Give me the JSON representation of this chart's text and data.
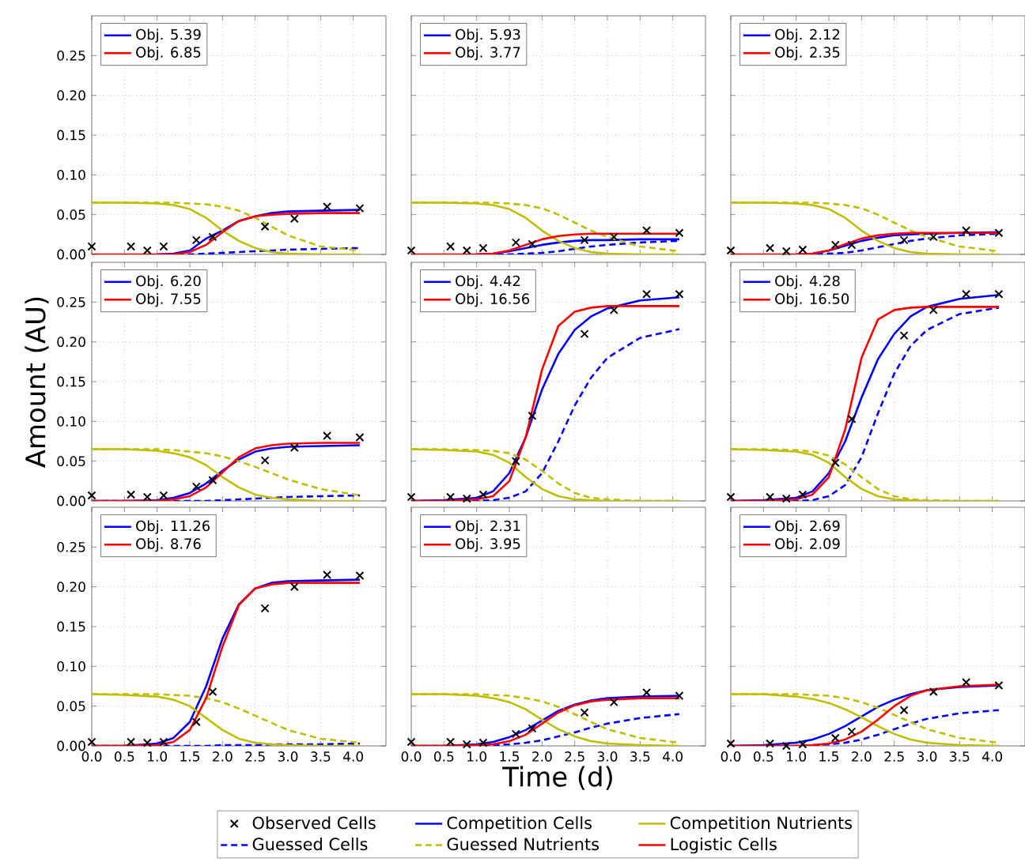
{
  "chart_data": [
    {
      "type": "line",
      "x": [
        0,
        0.5,
        1,
        1.25,
        1.5,
        1.75,
        2,
        2.25,
        2.5,
        2.75,
        3,
        3.5,
        4.1
      ],
      "xlim": [
        0,
        4.5
      ],
      "xticks": [
        0,
        0.5,
        1,
        1.5,
        2,
        2.5,
        3,
        3.5,
        4
      ],
      "ylim": [
        0,
        0.3
      ],
      "yticks": [
        {
          "value": 0,
          "label": "0.00"
        },
        {
          "value": 0.05,
          "label": "0.05"
        },
        {
          "value": 0.1,
          "label": "0.10"
        },
        {
          "value": 0.15,
          "label": "0.15"
        },
        {
          "value": 0.2,
          "label": "0.20"
        },
        {
          "value": 0.25,
          "label": "0.25"
        }
      ],
      "grid": true,
      "legend": "top left",
      "tick_labels": "y",
      "series": [
        {
          "type": "scatter",
          "marker": "cross",
          "color": "#000000",
          "x": [
            0,
            0.6,
            0.85,
            1.1,
            1.6,
            1.85,
            2.65,
            3.1,
            3.6,
            4.1
          ],
          "values": [
            0.01,
            0.01,
            0.005,
            0.01,
            0.018,
            0.022,
            0.035,
            0.045,
            0.06,
            0.058
          ]
        },
        {
          "name": "Obj. 5.39",
          "color": "#0000ff",
          "line_style": "solid",
          "values": [
            null,
            null,
            0,
            0.001,
            0.005,
            0.02,
            0.03,
            0.042,
            0.048,
            0.052,
            0.054,
            0.055,
            0.056
          ]
        },
        {
          "color": "#0000ff",
          "line_style": "dashed",
          "values": [
            null,
            null,
            0,
            0,
            0,
            0.001,
            0.002,
            0.003,
            0.004,
            0.005,
            0.006,
            0.007,
            0.008
          ]
        },
        {
          "color": "#bfbf00",
          "line_style": "solid",
          "values": [
            0.065,
            0.065,
            0.064,
            0.062,
            0.057,
            0.046,
            0.03,
            0.017,
            0.008,
            0.003,
            0.001,
            0,
            0
          ]
        },
        {
          "color": "#bfbf00",
          "line_style": "dashed",
          "values": [
            0.065,
            0.065,
            0.065,
            0.065,
            0.064,
            0.063,
            0.06,
            0.055,
            0.046,
            0.035,
            0.024,
            0.01,
            0.005
          ]
        },
        {
          "name": "Obj. 6.85",
          "color": "#ff0000",
          "line_style": "solid",
          "values": [
            0,
            0,
            0,
            0,
            0.003,
            0.012,
            0.028,
            0.042,
            0.048,
            0.05,
            0.051,
            0.052,
            0.052
          ]
        }
      ]
    },
    {
      "type": "line",
      "x": [
        0,
        0.5,
        1,
        1.25,
        1.5,
        1.75,
        2,
        2.25,
        2.5,
        2.75,
        3,
        3.5,
        4.1
      ],
      "xlim": [
        0,
        4.5
      ],
      "xticks": [
        0,
        0.5,
        1,
        1.5,
        2,
        2.5,
        3,
        3.5,
        4
      ],
      "ylim": [
        0,
        0.3
      ],
      "yticks": [
        0,
        0.05,
        0.1,
        0.15,
        0.2,
        0.25
      ],
      "grid": true,
      "legend": "top left",
      "tick_labels": false,
      "series": [
        {
          "type": "scatter",
          "marker": "cross",
          "color": "#000000",
          "x": [
            0,
            0.6,
            0.85,
            1.1,
            1.6,
            1.85,
            2.65,
            3.1,
            3.6,
            4.1
          ],
          "values": [
            0.005,
            0.01,
            0.005,
            0.008,
            0.015,
            0.013,
            0.018,
            0.022,
            0.03,
            0.027
          ]
        },
        {
          "name": "Obj. 5.93",
          "color": "#0000ff",
          "line_style": "solid",
          "values": [
            null,
            null,
            0,
            0.001,
            0.004,
            0.008,
            0.012,
            0.015,
            0.017,
            0.018,
            0.018,
            0.019,
            0.019
          ]
        },
        {
          "color": "#0000ff",
          "line_style": "dashed",
          "values": [
            null,
            null,
            0,
            0,
            0,
            0.001,
            0.002,
            0.004,
            0.007,
            0.01,
            0.012,
            0.015,
            0.017
          ]
        },
        {
          "color": "#bfbf00",
          "line_style": "solid",
          "values": [
            0.065,
            0.065,
            0.064,
            0.062,
            0.057,
            0.046,
            0.03,
            0.017,
            0.008,
            0.003,
            0.001,
            0,
            0
          ]
        },
        {
          "color": "#bfbf00",
          "line_style": "dashed",
          "values": [
            0.065,
            0.065,
            0.065,
            0.065,
            0.064,
            0.062,
            0.058,
            0.05,
            0.04,
            0.03,
            0.022,
            0.01,
            0.004
          ]
        },
        {
          "name": "Obj. 3.77",
          "color": "#ff0000",
          "line_style": "solid",
          "values": [
            0,
            0,
            0,
            0.001,
            0.005,
            0.012,
            0.019,
            0.023,
            0.025,
            0.026,
            0.026,
            0.026,
            0.026
          ]
        }
      ]
    },
    {
      "type": "line",
      "x": [
        0,
        0.5,
        1,
        1.25,
        1.5,
        1.75,
        2,
        2.25,
        2.5,
        2.75,
        3,
        3.5,
        4.1
      ],
      "xlim": [
        0,
        4.5
      ],
      "xticks": [
        0,
        0.5,
        1,
        1.5,
        2,
        2.5,
        3,
        3.5,
        4
      ],
      "ylim": [
        0,
        0.3
      ],
      "yticks": [
        0,
        0.05,
        0.1,
        0.15,
        0.2,
        0.25
      ],
      "grid": true,
      "legend": "top left",
      "tick_labels": false,
      "series": [
        {
          "type": "scatter",
          "marker": "cross",
          "color": "#000000",
          "x": [
            0,
            0.6,
            0.85,
            1.1,
            1.6,
            1.85,
            2.65,
            3.1,
            3.6,
            4.1
          ],
          "values": [
            0.005,
            0.008,
            0.004,
            0.006,
            0.012,
            0.012,
            0.018,
            0.022,
            0.03,
            0.027
          ]
        },
        {
          "name": "Obj. 2.12",
          "color": "#0000ff",
          "line_style": "solid",
          "values": [
            null,
            null,
            0,
            0.001,
            0.005,
            0.011,
            0.017,
            0.021,
            0.024,
            0.025,
            0.026,
            0.027,
            0.028
          ]
        },
        {
          "color": "#0000ff",
          "line_style": "dashed",
          "values": [
            null,
            null,
            0,
            0,
            0.001,
            0.002,
            0.005,
            0.009,
            0.013,
            0.017,
            0.02,
            0.024,
            0.026
          ]
        },
        {
          "color": "#bfbf00",
          "line_style": "solid",
          "values": [
            0.065,
            0.065,
            0.064,
            0.062,
            0.057,
            0.046,
            0.03,
            0.017,
            0.008,
            0.003,
            0.001,
            0,
            0
          ]
        },
        {
          "color": "#bfbf00",
          "line_style": "dashed",
          "values": [
            0.065,
            0.065,
            0.065,
            0.065,
            0.064,
            0.062,
            0.058,
            0.05,
            0.04,
            0.03,
            0.022,
            0.01,
            0.004
          ]
        },
        {
          "name": "Obj. 2.35",
          "color": "#ff0000",
          "line_style": "solid",
          "values": [
            0,
            0,
            0,
            0.001,
            0.005,
            0.013,
            0.02,
            0.024,
            0.026,
            0.027,
            0.027,
            0.027,
            0.027
          ]
        }
      ]
    },
    {
      "type": "line",
      "x": [
        0,
        0.5,
        1,
        1.25,
        1.5,
        1.75,
        2,
        2.25,
        2.5,
        2.75,
        3,
        3.5,
        4.1
      ],
      "ylabel": "Amount (AU)",
      "xlim": [
        0,
        4.5
      ],
      "xticks": [
        0,
        0.5,
        1,
        1.5,
        2,
        2.5,
        3,
        3.5,
        4
      ],
      "ylim": [
        0,
        0.3
      ],
      "yticks": [
        {
          "value": 0,
          "label": "0.00"
        },
        {
          "value": 0.05,
          "label": "0.05"
        },
        {
          "value": 0.1,
          "label": "0.10"
        },
        {
          "value": 0.15,
          "label": "0.15"
        },
        {
          "value": 0.2,
          "label": "0.20"
        },
        {
          "value": 0.25,
          "label": "0.25"
        }
      ],
      "grid": true,
      "legend": "top left",
      "tick_labels": "y",
      "series": [
        {
          "type": "scatter",
          "marker": "cross",
          "color": "#000000",
          "x": [
            0,
            0.6,
            0.85,
            1.1,
            1.6,
            1.85,
            2.65,
            3.1,
            3.6,
            4.1
          ],
          "values": [
            0.007,
            0.008,
            0.005,
            0.007,
            0.018,
            0.026,
            0.051,
            0.067,
            0.082,
            0.08
          ]
        },
        {
          "name": "Obj. 6.20",
          "color": "#0000ff",
          "line_style": "solid",
          "values": [
            0,
            0,
            0.001,
            0.004,
            0.01,
            0.022,
            0.038,
            0.052,
            0.062,
            0.066,
            0.068,
            0.069,
            0.07
          ]
        },
        {
          "color": "#0000ff",
          "line_style": "dashed",
          "values": [
            0,
            0,
            0,
            0,
            0,
            0,
            0.001,
            0.002,
            0.003,
            0.004,
            0.005,
            0.006,
            0.007
          ]
        },
        {
          "color": "#bfbf00",
          "line_style": "solid",
          "values": [
            0.065,
            0.065,
            0.063,
            0.06,
            0.055,
            0.045,
            0.03,
            0.017,
            0.008,
            0.004,
            0.002,
            0,
            0
          ]
        },
        {
          "color": "#bfbf00",
          "line_style": "dashed",
          "values": [
            0.065,
            0.065,
            0.065,
            0.064,
            0.062,
            0.06,
            0.056,
            0.05,
            0.043,
            0.035,
            0.027,
            0.015,
            0.007
          ]
        },
        {
          "name": "Obj. 7.55",
          "color": "#ff0000",
          "line_style": "solid",
          "values": [
            0,
            0,
            0,
            0.002,
            0.006,
            0.017,
            0.036,
            0.055,
            0.066,
            0.07,
            0.072,
            0.073,
            0.073
          ]
        }
      ]
    },
    {
      "type": "line",
      "x": [
        0,
        0.5,
        1,
        1.25,
        1.5,
        1.75,
        2,
        2.25,
        2.5,
        2.75,
        3,
        3.5,
        4.1
      ],
      "xlim": [
        0,
        4.5
      ],
      "xticks": [
        0,
        0.5,
        1,
        1.5,
        2,
        2.5,
        3,
        3.5,
        4
      ],
      "ylim": [
        0,
        0.3
      ],
      "yticks": [
        0,
        0.05,
        0.1,
        0.15,
        0.2,
        0.25
      ],
      "grid": true,
      "legend": "top left",
      "tick_labels": false,
      "series": [
        {
          "type": "scatter",
          "marker": "cross",
          "color": "#000000",
          "x": [
            0,
            0.6,
            0.85,
            1.1,
            1.6,
            1.85,
            2.65,
            3.1,
            3.6,
            4.1
          ],
          "values": [
            0.005,
            0.005,
            0.003,
            0.008,
            0.05,
            0.107,
            0.21,
            0.24,
            0.26,
            0.26
          ]
        },
        {
          "name": "Obj. 4.42",
          "color": "#0000ff",
          "line_style": "solid",
          "values": [
            0,
            0.001,
            0.004,
            0.012,
            0.035,
            0.08,
            0.14,
            0.185,
            0.215,
            0.232,
            0.242,
            0.252,
            0.256
          ]
        },
        {
          "color": "#0000ff",
          "line_style": "dashed",
          "values": [
            0,
            0,
            0,
            0.001,
            0.004,
            0.012,
            0.035,
            0.075,
            0.12,
            0.155,
            0.18,
            0.205,
            0.216
          ]
        },
        {
          "color": "#bfbf00",
          "line_style": "solid",
          "values": [
            0.065,
            0.064,
            0.062,
            0.058,
            0.048,
            0.03,
            0.015,
            0.006,
            0.002,
            0.001,
            0,
            0,
            0
          ]
        },
        {
          "color": "#bfbf00",
          "line_style": "dashed",
          "values": [
            0.065,
            0.065,
            0.064,
            0.063,
            0.06,
            0.052,
            0.038,
            0.022,
            0.01,
            0.004,
            0.002,
            0,
            0
          ]
        },
        {
          "name": "Obj. 16.56",
          "color": "#ff0000",
          "line_style": "solid",
          "values": [
            0,
            0,
            0.002,
            0.006,
            0.025,
            0.08,
            0.165,
            0.22,
            0.238,
            0.243,
            0.245,
            0.245,
            0.245
          ]
        }
      ]
    },
    {
      "type": "line",
      "x": [
        0,
        0.5,
        1,
        1.25,
        1.5,
        1.75,
        2,
        2.25,
        2.5,
        2.75,
        3,
        3.5,
        4.1
      ],
      "xlim": [
        0,
        4.5
      ],
      "xticks": [
        0,
        0.5,
        1,
        1.5,
        2,
        2.5,
        3,
        3.5,
        4
      ],
      "ylim": [
        0,
        0.3
      ],
      "yticks": [
        0,
        0.05,
        0.1,
        0.15,
        0.2,
        0.25
      ],
      "grid": true,
      "legend": "top left",
      "tick_labels": false,
      "series": [
        {
          "type": "scatter",
          "marker": "cross",
          "color": "#000000",
          "x": [
            0,
            0.6,
            0.85,
            1.1,
            1.6,
            1.85,
            2.65,
            3.1,
            3.6,
            4.1
          ],
          "values": [
            0.005,
            0.005,
            0.003,
            0.008,
            0.048,
            0.103,
            0.208,
            0.24,
            0.26,
            0.26
          ]
        },
        {
          "name": "Obj. 4.28",
          "color": "#0000ff",
          "line_style": "solid",
          "values": [
            0,
            0.001,
            0.004,
            0.012,
            0.035,
            0.075,
            0.13,
            0.178,
            0.21,
            0.232,
            0.244,
            0.254,
            0.259
          ]
        },
        {
          "color": "#0000ff",
          "line_style": "dashed",
          "values": [
            0,
            0,
            0,
            0.001,
            0.006,
            0.02,
            0.055,
            0.11,
            0.16,
            0.195,
            0.215,
            0.235,
            0.243
          ]
        },
        {
          "color": "#bfbf00",
          "line_style": "solid",
          "values": [
            0.065,
            0.064,
            0.062,
            0.058,
            0.048,
            0.03,
            0.015,
            0.006,
            0.002,
            0.001,
            0,
            0,
            0
          ]
        },
        {
          "color": "#bfbf00",
          "line_style": "dashed",
          "values": [
            0.065,
            0.065,
            0.064,
            0.062,
            0.057,
            0.046,
            0.03,
            0.015,
            0.006,
            0.002,
            0.001,
            0,
            0
          ]
        },
        {
          "name": "Obj. 16.50",
          "color": "#ff0000",
          "line_style": "solid",
          "values": [
            0,
            0,
            0.002,
            0.008,
            0.03,
            0.09,
            0.18,
            0.228,
            0.24,
            0.243,
            0.244,
            0.244,
            0.244
          ]
        }
      ]
    },
    {
      "type": "line",
      "x": [
        0,
        0.5,
        1,
        1.25,
        1.5,
        1.75,
        2,
        2.25,
        2.5,
        2.75,
        3,
        3.5,
        4.1
      ],
      "xlim": [
        0,
        4.5
      ],
      "xticks": [
        {
          "value": 0,
          "label": "0.0"
        },
        {
          "value": 0.5,
          "label": "0.5"
        },
        {
          "value": 1,
          "label": "1.0"
        },
        {
          "value": 1.5,
          "label": "1.5"
        },
        {
          "value": 2,
          "label": "2.0"
        },
        {
          "value": 2.5,
          "label": "2.5"
        },
        {
          "value": 3,
          "label": "3.0"
        },
        {
          "value": 3.5,
          "label": "3.5"
        },
        {
          "value": 4,
          "label": "4.0"
        }
      ],
      "ylim": [
        0,
        0.3
      ],
      "yticks": [
        {
          "value": 0,
          "label": "0.00"
        },
        {
          "value": 0.05,
          "label": "0.05"
        },
        {
          "value": 0.1,
          "label": "0.10"
        },
        {
          "value": 0.15,
          "label": "0.15"
        },
        {
          "value": 0.2,
          "label": "0.20"
        },
        {
          "value": 0.25,
          "label": "0.25"
        }
      ],
      "grid": true,
      "legend": "top left",
      "series": [
        {
          "type": "scatter",
          "marker": "cross",
          "color": "#000000",
          "x": [
            0,
            0.6,
            0.85,
            1.1,
            1.6,
            1.85,
            2.65,
            3.1,
            3.6,
            4.1
          ],
          "values": [
            0.005,
            0.005,
            0.004,
            0.005,
            0.03,
            0.068,
            0.173,
            0.2,
            0.215,
            0.214
          ]
        },
        {
          "name": "Obj. 11.26",
          "color": "#0000ff",
          "line_style": "solid",
          "values": [
            0,
            0,
            0.003,
            0.01,
            0.03,
            0.075,
            0.135,
            0.178,
            0.198,
            0.205,
            0.207,
            0.208,
            0.209
          ]
        },
        {
          "color": "#0000ff",
          "line_style": "dashed",
          "values": [
            0,
            0,
            0,
            0,
            0,
            0,
            0.001,
            0.001,
            0.001,
            0.002,
            0.002,
            0.002,
            0.003
          ]
        },
        {
          "color": "#bfbf00",
          "line_style": "solid",
          "values": [
            0.065,
            0.064,
            0.062,
            0.058,
            0.05,
            0.035,
            0.02,
            0.009,
            0.004,
            0.002,
            0.001,
            0,
            0
          ]
        },
        {
          "color": "#bfbf00",
          "line_style": "dashed",
          "values": [
            0.065,
            0.065,
            0.065,
            0.064,
            0.063,
            0.06,
            0.055,
            0.047,
            0.038,
            0.029,
            0.02,
            0.009,
            0.004
          ]
        },
        {
          "name": "Obj. 8.76",
          "color": "#ff0000",
          "line_style": "solid",
          "values": [
            0,
            0,
            0.001,
            0.005,
            0.02,
            0.06,
            0.125,
            0.177,
            0.198,
            0.203,
            0.205,
            0.205,
            0.205
          ]
        }
      ]
    },
    {
      "type": "line",
      "x": [
        0,
        0.5,
        1,
        1.25,
        1.5,
        1.75,
        2,
        2.25,
        2.5,
        2.75,
        3,
        3.5,
        4.1
      ],
      "xlabel": "Time (d)",
      "xlim": [
        0,
        4.5
      ],
      "xticks": [
        {
          "value": 0,
          "label": "0.0"
        },
        {
          "value": 0.5,
          "label": "0.5"
        },
        {
          "value": 1,
          "label": "1.0"
        },
        {
          "value": 1.5,
          "label": "1.5"
        },
        {
          "value": 2,
          "label": "2.0"
        },
        {
          "value": 2.5,
          "label": "2.5"
        },
        {
          "value": 3,
          "label": "3.0"
        },
        {
          "value": 3.5,
          "label": "3.5"
        },
        {
          "value": 4,
          "label": "4.0"
        }
      ],
      "ylim": [
        0,
        0.3
      ],
      "yticks": [
        0,
        0.05,
        0.1,
        0.15,
        0.2,
        0.25
      ],
      "grid": true,
      "legend": "top left",
      "tick_labels": "x",
      "series": [
        {
          "type": "scatter",
          "marker": "cross",
          "color": "#000000",
          "x": [
            0,
            0.6,
            0.85,
            1.1,
            1.6,
            1.85,
            2.65,
            3.1,
            3.6,
            4.1
          ],
          "values": [
            0.005,
            0.005,
            0.002,
            0.004,
            0.015,
            0.022,
            0.042,
            0.055,
            0.067,
            0.063
          ]
        },
        {
          "name": "Obj. 2.31",
          "color": "#0000ff",
          "line_style": "solid",
          "values": [
            0,
            0,
            0.002,
            0.005,
            0.011,
            0.02,
            0.032,
            0.044,
            0.052,
            0.057,
            0.06,
            0.062,
            0.063
          ]
        },
        {
          "color": "#0000ff",
          "line_style": "dashed",
          "values": [
            0,
            0,
            0,
            0.001,
            0.002,
            0.004,
            0.007,
            0.012,
            0.017,
            0.023,
            0.028,
            0.035,
            0.04
          ]
        },
        {
          "color": "#bfbf00",
          "line_style": "solid",
          "values": [
            0.065,
            0.065,
            0.063,
            0.06,
            0.055,
            0.046,
            0.033,
            0.021,
            0.012,
            0.006,
            0.003,
            0.001,
            0
          ]
        },
        {
          "color": "#bfbf00",
          "line_style": "dashed",
          "values": [
            0.065,
            0.065,
            0.065,
            0.064,
            0.063,
            0.06,
            0.056,
            0.049,
            0.04,
            0.03,
            0.021,
            0.01,
            0.004
          ]
        },
        {
          "name": "Obj. 3.95",
          "color": "#ff0000",
          "line_style": "solid",
          "values": [
            0,
            0,
            0.001,
            0.002,
            0.006,
            0.014,
            0.028,
            0.042,
            0.051,
            0.056,
            0.058,
            0.06,
            0.06
          ]
        }
      ]
    },
    {
      "type": "line",
      "x": [
        0,
        0.5,
        1,
        1.25,
        1.5,
        1.75,
        2,
        2.25,
        2.5,
        2.75,
        3,
        3.5,
        4.1
      ],
      "xlim": [
        0,
        4.5
      ],
      "xticks": [
        {
          "value": 0,
          "label": "0.0"
        },
        {
          "value": 0.5,
          "label": "0.5"
        },
        {
          "value": 1,
          "label": "1.0"
        },
        {
          "value": 1.5,
          "label": "1.5"
        },
        {
          "value": 2,
          "label": "2.0"
        },
        {
          "value": 2.5,
          "label": "2.5"
        },
        {
          "value": 3,
          "label": "3.0"
        },
        {
          "value": 3.5,
          "label": "3.5"
        },
        {
          "value": 4,
          "label": "4.0"
        }
      ],
      "ylim": [
        0,
        0.3
      ],
      "yticks": [
        0,
        0.05,
        0.1,
        0.15,
        0.2,
        0.25
      ],
      "grid": true,
      "legend": "top left",
      "tick_labels": "x",
      "series": [
        {
          "type": "scatter",
          "marker": "cross",
          "color": "#000000",
          "x": [
            0,
            0.6,
            0.85,
            1.1,
            1.6,
            1.85,
            2.65,
            3.1,
            3.6,
            4.1
          ],
          "values": [
            0.003,
            0.003,
            0,
            0.002,
            0.01,
            0.018,
            0.045,
            0.068,
            0.08,
            0.076
          ]
        },
        {
          "name": "Obj. 2.69",
          "color": "#0000ff",
          "line_style": "solid",
          "values": [
            0,
            0.001,
            0.004,
            0.008,
            0.015,
            0.025,
            0.037,
            0.049,
            0.058,
            0.065,
            0.07,
            0.074,
            0.076
          ]
        },
        {
          "color": "#0000ff",
          "line_style": "dashed",
          "values": [
            0,
            0,
            0,
            0.001,
            0.002,
            0.004,
            0.008,
            0.014,
            0.021,
            0.028,
            0.034,
            0.041,
            0.045
          ]
        },
        {
          "color": "#bfbf00",
          "line_style": "solid",
          "values": [
            0.065,
            0.065,
            0.062,
            0.059,
            0.054,
            0.046,
            0.036,
            0.025,
            0.015,
            0.008,
            0.004,
            0.001,
            0
          ]
        },
        {
          "color": "#bfbf00",
          "line_style": "dashed",
          "values": [
            0.065,
            0.065,
            0.065,
            0.064,
            0.063,
            0.06,
            0.055,
            0.048,
            0.039,
            0.03,
            0.021,
            0.01,
            0.004
          ]
        },
        {
          "name": "Obj. 2.09",
          "color": "#ff0000",
          "line_style": "solid",
          "values": [
            0,
            0,
            0,
            0.001,
            0.003,
            0.008,
            0.018,
            0.033,
            0.05,
            0.063,
            0.07,
            0.075,
            0.077
          ]
        }
      ]
    },
    {
      "type": "other",
      "legend": "bottom",
      "series": [
        {
          "name": "Observed Cells",
          "type": "scatter",
          "marker": "cross",
          "color": "#000000"
        },
        {
          "name": "Competition Cells",
          "color": "#0000ff",
          "line_style": "solid"
        },
        {
          "name": "Competition Nutrients",
          "color": "#bfbf00",
          "line_style": "solid"
        },
        {
          "name": "Guessed Cells",
          "color": "#0000ff",
          "line_style": "dashed"
        },
        {
          "name": "Guessed Nutrients",
          "color": "#bfbf00",
          "line_style": "dashed"
        },
        {
          "name": "Logistic Cells",
          "color": "#ff0000",
          "line_style": "solid"
        }
      ]
    }
  ]
}
